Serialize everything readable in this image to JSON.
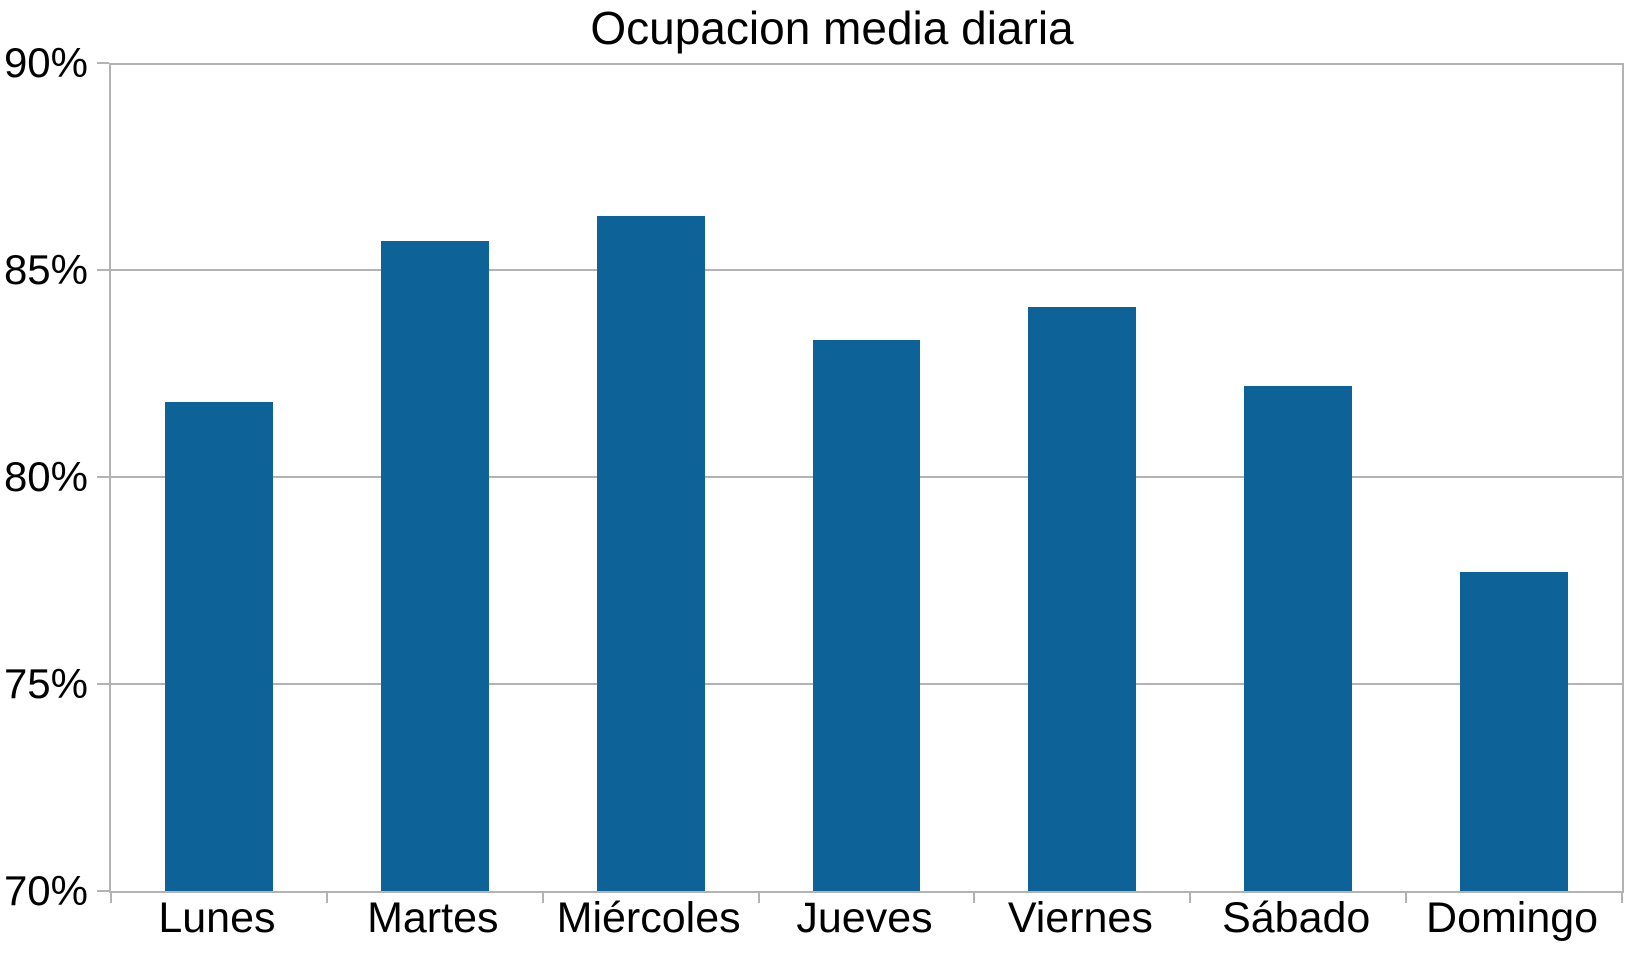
{
  "chart_data": {
    "type": "bar",
    "title": "Ocupacion media diaria",
    "categories": [
      "Lunes",
      "Martes",
      "Miércoles",
      "Jueves",
      "Viernes",
      "Sábado",
      "Domingo"
    ],
    "values": [
      81.8,
      85.7,
      86.3,
      83.3,
      84.1,
      82.2,
      77.7
    ],
    "unit": "%",
    "xlabel": "",
    "ylabel": "",
    "ylim": [
      70,
      90
    ],
    "yticks": [
      70,
      75,
      80,
      85,
      90
    ],
    "ytick_labels": [
      "70%",
      "75%",
      "80%",
      "85%",
      "90%"
    ],
    "grid": true,
    "legend": false,
    "bar_width_fraction": 0.5,
    "colors": {
      "bar": "#0d6298",
      "grid": "#b3b3b3",
      "text": "#000000",
      "background": "#ffffff"
    }
  }
}
